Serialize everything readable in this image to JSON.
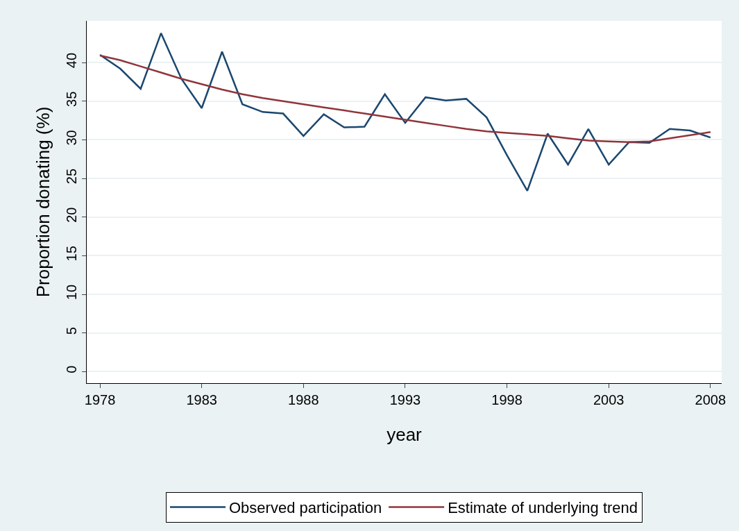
{
  "chart_data": {
    "type": "line",
    "xlabel": "year",
    "ylabel": "Proportion donating (%)",
    "x": [
      1978,
      1979,
      1980,
      1981,
      1982,
      1983,
      1984,
      1985,
      1986,
      1987,
      1988,
      1989,
      1990,
      1991,
      1992,
      1993,
      1994,
      1995,
      1996,
      1997,
      1998,
      1999,
      2000,
      2001,
      2002,
      2003,
      2004,
      2005,
      2006,
      2007,
      2008
    ],
    "series": [
      {
        "name": "Observed participation",
        "color": "#1a476f",
        "values": [
          41.0,
          39.2,
          36.6,
          43.8,
          37.9,
          34.1,
          41.4,
          34.6,
          33.6,
          33.4,
          30.5,
          33.3,
          31.6,
          31.7,
          35.9,
          32.2,
          35.5,
          35.1,
          35.3,
          32.9,
          28.0,
          23.4,
          30.8,
          26.8,
          31.4,
          26.8,
          29.7,
          29.6,
          31.4,
          31.2,
          30.3
        ]
      },
      {
        "name": "Estimate of underlying trend",
        "color": "#90353b",
        "values": [
          40.9,
          40.3,
          39.5,
          38.7,
          37.9,
          37.2,
          36.5,
          35.9,
          35.4,
          35.0,
          34.6,
          34.2,
          33.8,
          33.4,
          33.0,
          32.6,
          32.2,
          31.8,
          31.4,
          31.1,
          30.9,
          30.7,
          30.5,
          30.2,
          29.9,
          29.8,
          29.7,
          29.8,
          30.2,
          30.6,
          31.0
        ]
      }
    ],
    "xlim": [
      1977.35,
      2008.55
    ],
    "xticks": [
      1978,
      1983,
      1988,
      1993,
      1998,
      2003,
      2008
    ],
    "ylim": [
      -1.5,
      45.4
    ],
    "yticks": [
      0,
      5,
      10,
      15,
      20,
      25,
      30,
      35,
      40
    ],
    "grid": "y",
    "legend": "bottom",
    "line_style": "solid",
    "marker": "none"
  }
}
